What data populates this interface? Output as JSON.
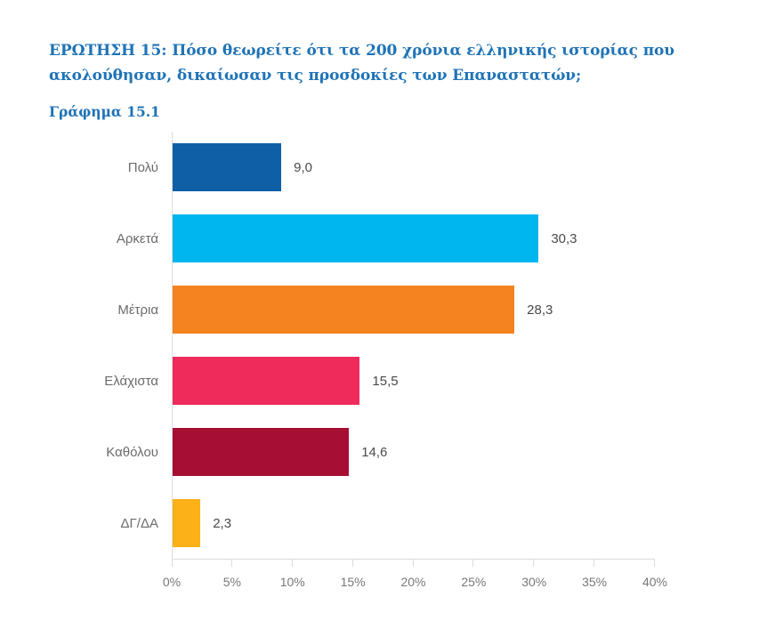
{
  "page": {
    "question_title": "ΕΡΩΤΗΣΗ 15: Πόσο θεωρείτε ότι τα 200 χρόνια ελληνικής ιστορίας που ακολούθησαν, δικαίωσαν τις προσδοκίες των Επαναστατών;",
    "chart_caption": "Γράφημα 15.1"
  },
  "colors": {
    "title_blue": "#1f73b7",
    "axis_line": "#dcdcdc",
    "category_label": "#6b6b6d",
    "value_label": "#4a4a4c",
    "tick_label": "#77787b"
  },
  "chart_data": {
    "type": "bar",
    "orientation": "horizontal",
    "title": "Γράφημα 15.1",
    "question": "ΕΡΩΤΗΣΗ 15: Πόσο θεωρείτε ότι τα 200 χρόνια ελληνικής ιστορίας που ακολούθησαν, δικαίωσαν τις προσδοκίες των Επαναστατών;",
    "categories": [
      "Πολύ",
      "Αρκετά",
      "Μέτρια",
      "Ελάχιστα",
      "Καθόλου",
      "ΔΓ/ΔΑ"
    ],
    "values": [
      9.0,
      30.3,
      28.3,
      15.5,
      14.6,
      2.3
    ],
    "value_labels": [
      "9,0",
      "30,3",
      "28,3",
      "15,5",
      "14,6",
      "2,3"
    ],
    "bar_colors": [
      "#0e5fa6",
      "#00b6ef",
      "#f5831f",
      "#ef2b5c",
      "#a60e34",
      "#fbb117"
    ],
    "x_axis": {
      "min": 0,
      "max": 40,
      "tick_step": 5,
      "tick_labels": [
        "0%",
        "5%",
        "10%",
        "15%",
        "20%",
        "25%",
        "30%",
        "35%",
        "40%"
      ]
    },
    "grid": false,
    "legend_position": "none"
  }
}
